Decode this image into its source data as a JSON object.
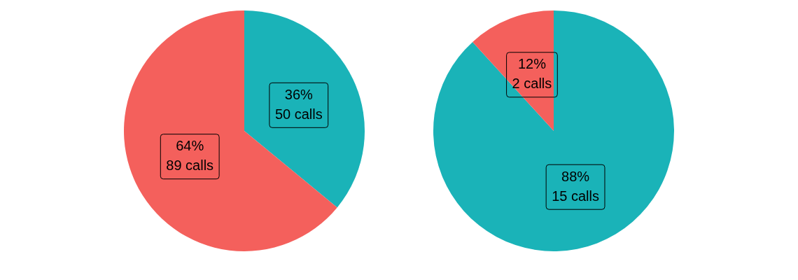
{
  "chart_data": [
    {
      "type": "pie",
      "categories": [
        null,
        null
      ],
      "values": [
        50,
        89
      ],
      "colors": [
        "#1ab3b8",
        "#f4605c"
      ],
      "value_labels": [
        "36%\n50 calls",
        "64%\n89 calls"
      ]
    },
    {
      "type": "pie",
      "categories": [
        null,
        null
      ],
      "values": [
        15,
        2
      ],
      "colors": [
        "#1ab3b8",
        "#f4605c"
      ],
      "value_labels": [
        "88%\n15 calls",
        "12%\n2 calls"
      ]
    }
  ]
}
